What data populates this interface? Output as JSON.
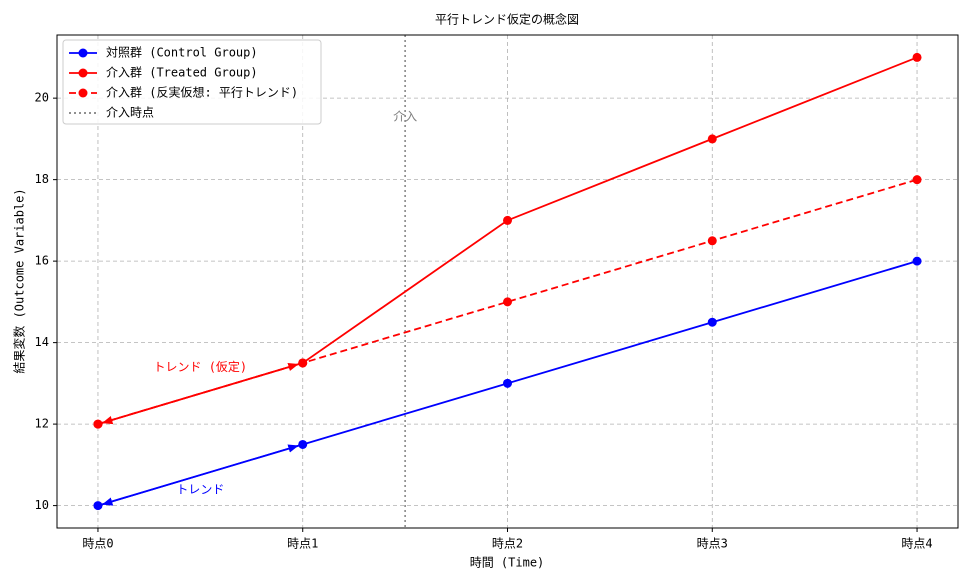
{
  "chart_data": {
    "type": "line",
    "title": "平行トレンド仮定の概念図",
    "xlabel": "時間 (Time)",
    "ylabel": "結果変数 (Outcome Variable)",
    "categories": [
      "時点0",
      "時点1",
      "時点2",
      "時点3",
      "時点4"
    ],
    "xlim": [
      -0.2,
      4.2
    ],
    "ylim": [
      9.45,
      21.55
    ],
    "yticks": [
      10,
      12,
      14,
      16,
      18,
      20
    ],
    "grid": true,
    "legend": "upper left",
    "series": [
      {
        "name": "対照群 (Control Group)",
        "color": "#0000ff",
        "linestyle": "solid",
        "values": [
          10,
          11.5,
          13,
          14.5,
          16
        ]
      },
      {
        "name": "介入群 (Treated Group)",
        "color": "#ff0000",
        "linestyle": "solid",
        "values": [
          12,
          13.5,
          17,
          19,
          21
        ]
      },
      {
        "name": "介入群 (反実仮想: 平行トレンド)",
        "color": "#ff0000",
        "linestyle": "dashed",
        "values": [
          12,
          13.5,
          15,
          16.5,
          18
        ]
      }
    ],
    "intervention": {
      "x": 1.5,
      "name": "介入時点",
      "label": "介入",
      "color": "#808080"
    },
    "annotations": [
      {
        "text": "トレンド (仮定)",
        "series": 1,
        "color": "#ff0000"
      },
      {
        "text": "トレンド",
        "series": 0,
        "color": "#0000ff"
      }
    ]
  }
}
